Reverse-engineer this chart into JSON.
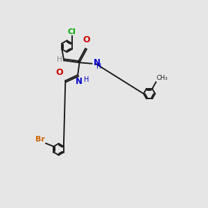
{
  "bg_color": "#e6e6e6",
  "bond_color": "#1a1a1a",
  "cl_color": "#00aa00",
  "br_color": "#cc6600",
  "o_color": "#cc0000",
  "n_color": "#0000cc",
  "h_color": "#888888",
  "line_width": 1.4,
  "ring_r": 0.28,
  "inner_ratio": 0.62,
  "xlim": [
    0,
    10
  ],
  "ylim": [
    0,
    10
  ]
}
